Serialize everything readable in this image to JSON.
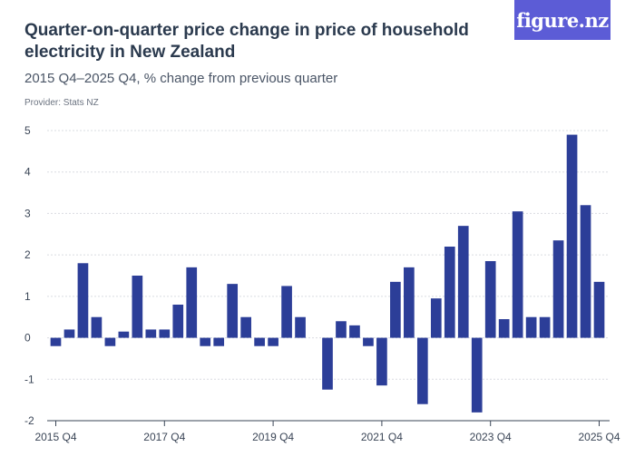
{
  "header": {
    "title": "Quarter-on-quarter price change in price of household electricity in New Zealand",
    "subtitle": "2015 Q4–2025 Q4, % change from previous quarter",
    "provider": "Provider: Stats NZ",
    "logo": "figure.nz"
  },
  "colors": {
    "bar": "#2c3e98",
    "grid": "#d9dce1",
    "axis": "#3a4556",
    "logo_bg": "#5c5cd6"
  },
  "chart_data": {
    "type": "bar",
    "title": "Quarter-on-quarter price change in price of household electricity in New Zealand",
    "subtitle": "2015 Q4–2025 Q4, % change from previous quarter",
    "ylim": [
      -2,
      5
    ],
    "yticks": [
      5,
      4,
      3,
      2,
      1,
      0,
      -1,
      -2
    ],
    "grid": true,
    "x_tick_labels": [
      {
        "index": 0,
        "label": "2015 Q4"
      },
      {
        "index": 8,
        "label": "2017 Q4"
      },
      {
        "index": 16,
        "label": "2019 Q4"
      },
      {
        "index": 24,
        "label": "2021 Q4"
      },
      {
        "index": 32,
        "label": "2023 Q4"
      },
      {
        "index": 40,
        "label": "2025 Q4"
      }
    ],
    "categories": [
      "2015 Q4",
      "2016 Q1",
      "2016 Q2",
      "2016 Q3",
      "2016 Q4",
      "2017 Q1",
      "2017 Q2",
      "2017 Q3",
      "2017 Q4",
      "2018 Q1",
      "2018 Q2",
      "2018 Q3",
      "2018 Q4",
      "2019 Q1",
      "2019 Q2",
      "2019 Q3",
      "2019 Q4",
      "2020 Q1",
      "2020 Q2",
      "2020 Q3",
      "2020 Q4",
      "2021 Q1",
      "2021 Q2",
      "2021 Q3",
      "2021 Q4",
      "2022 Q1",
      "2022 Q2",
      "2022 Q3",
      "2022 Q4",
      "2023 Q1",
      "2023 Q2",
      "2023 Q3",
      "2023 Q4",
      "2024 Q1",
      "2024 Q2",
      "2024 Q3",
      "2024 Q4",
      "2025 Q1",
      "2025 Q2",
      "2025 Q3",
      "2025 Q4"
    ],
    "values": [
      -0.2,
      0.2,
      1.8,
      0.5,
      -0.2,
      0.15,
      1.5,
      0.2,
      0.2,
      0.8,
      1.7,
      -0.2,
      -0.2,
      1.3,
      0.5,
      -0.2,
      -0.2,
      1.25,
      0.5,
      0,
      -1.25,
      0.4,
      0.3,
      -0.2,
      -1.15,
      1.35,
      1.7,
      -1.6,
      0.95,
      2.2,
      2.7,
      -1.8,
      1.85,
      0.45,
      3.05,
      0.5,
      0.5,
      2.35,
      4.9,
      3.2,
      1.35
    ]
  }
}
